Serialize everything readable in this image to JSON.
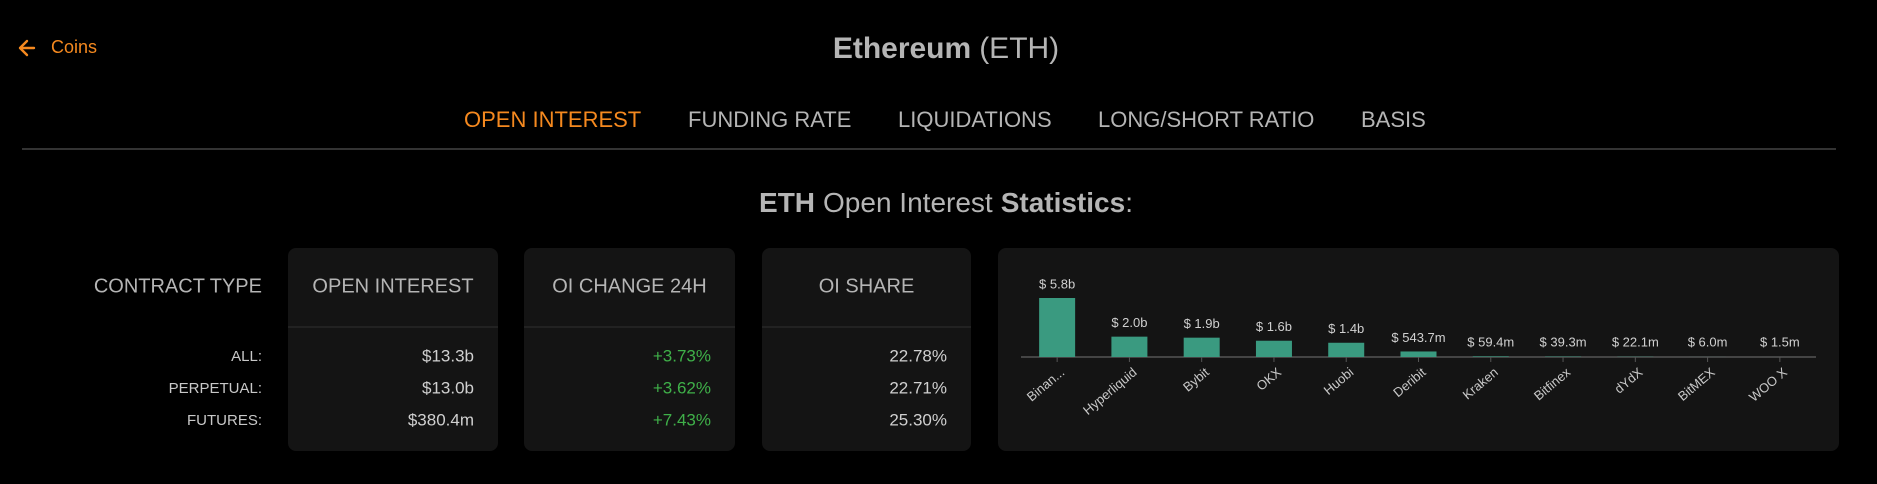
{
  "nav": {
    "back": "Coins"
  },
  "header": {
    "title": "Ethereum",
    "subtitle": "(ETH)"
  },
  "tabs": [
    {
      "label": "OPEN INTEREST",
      "active": true
    },
    {
      "label": "FUNDING RATE",
      "active": false
    },
    {
      "label": "LIQUIDATIONS",
      "active": false
    },
    {
      "label": "LONG/SHORT RATIO",
      "active": false
    },
    {
      "label": "BASIS",
      "active": false
    }
  ],
  "heading": {
    "symbol": "ETH",
    "middle": "Open Interest",
    "bold": "Statistics",
    "end": ":"
  },
  "table": {
    "header": "CONTRACT TYPE",
    "row_labels": [
      "ALL:",
      "PERPETUAL:",
      "FUTURES:"
    ],
    "columns": [
      {
        "title": "OPEN INTEREST",
        "cells": [
          "$13.3b",
          "$13.0b",
          "$380.4m"
        ],
        "color": "#d0d0d0"
      },
      {
        "title": "OI CHANGE 24H",
        "cells": [
          "+3.73%",
          "+3.62%",
          "+7.43%"
        ],
        "color": "#3fb049"
      },
      {
        "title": "OI SHARE",
        "cells": [
          "22.78%",
          "22.71%",
          "25.30%"
        ],
        "color": "#d0d0d0"
      }
    ]
  },
  "chart_data": {
    "type": "bar",
    "categories": [
      "Binan...",
      "Hyperliquid",
      "Bybit",
      "OKX",
      "Huobi",
      "Deribit",
      "Kraken",
      "Bitfinex",
      "dYdX",
      "BitMEX",
      "WOO X"
    ],
    "values": [
      5800000000,
      2000000000,
      1900000000,
      1600000000,
      1400000000,
      543700000,
      59400000,
      39300000,
      22100000,
      6000000,
      1500000
    ],
    "value_labels": [
      "$ 5.8b",
      "$ 2.0b",
      "$ 1.9b",
      "$ 1.6b",
      "$ 1.4b",
      "$ 543.7m",
      "$ 59.4m",
      "$ 39.3m",
      "$ 22.1m",
      "$ 6.0m",
      "$ 1.5m"
    ],
    "color": "#3a9a80"
  }
}
